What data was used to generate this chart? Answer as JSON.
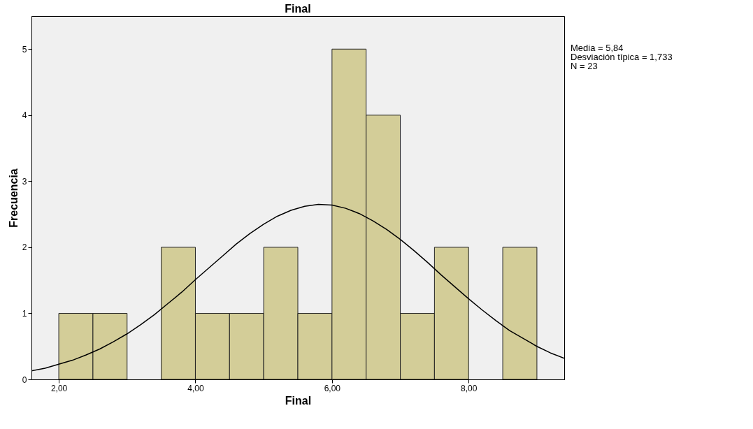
{
  "chart_data": {
    "type": "histogram",
    "title": "Final",
    "xlabel": "Final",
    "ylabel": "Frecuencia",
    "bins": [
      2,
      2.5,
      3,
      3.5,
      4,
      4.5,
      5,
      5.5,
      6,
      6.5,
      7,
      7.5,
      8,
      8.5,
      9
    ],
    "series": [
      {
        "color": "#d3cd98",
        "values": [
          1,
          1,
          0,
          2,
          1,
          1,
          2,
          1,
          5,
          4,
          1,
          2,
          0,
          2
        ]
      },
      {
        "type": "line",
        "color": "#000000",
        "x": [
          1.6,
          1.8,
          2.0,
          2.2,
          2.4,
          2.6,
          2.8,
          3.0,
          3.2,
          3.4,
          3.6,
          3.8,
          4.0,
          4.2,
          4.4,
          4.6,
          4.8,
          5.0,
          5.2,
          5.4,
          5.6,
          5.8,
          6.0,
          6.2,
          6.4,
          6.6,
          6.8,
          7.0,
          7.2,
          7.4,
          7.6,
          7.8,
          8.0,
          8.2,
          8.4,
          8.6,
          8.8,
          9.0,
          9.2,
          9.4
        ],
        "values": [
          0.13,
          0.17,
          0.23,
          0.29,
          0.37,
          0.46,
          0.57,
          0.69,
          0.83,
          0.98,
          1.15,
          1.32,
          1.51,
          1.69,
          1.87,
          2.05,
          2.21,
          2.35,
          2.47,
          2.56,
          2.62,
          2.65,
          2.64,
          2.59,
          2.51,
          2.4,
          2.27,
          2.12,
          1.95,
          1.77,
          1.58,
          1.4,
          1.22,
          1.05,
          0.89,
          0.74,
          0.62,
          0.5,
          0.4,
          0.32
        ]
      }
    ],
    "xlim": [
      1.6,
      9.4
    ],
    "xticks": [
      {
        "value": 2,
        "label": "2,00"
      },
      {
        "value": 4,
        "label": "4,00"
      },
      {
        "value": 6,
        "label": "6,00"
      },
      {
        "value": 8,
        "label": "8,00"
      }
    ],
    "ylim": [
      0,
      5.5
    ],
    "yticks": [
      0,
      1,
      2,
      3,
      4,
      5
    ],
    "grid": false,
    "annotations": [
      "Media = 5,84",
      "Desviación típica = 1,733",
      "N = 23"
    ]
  }
}
